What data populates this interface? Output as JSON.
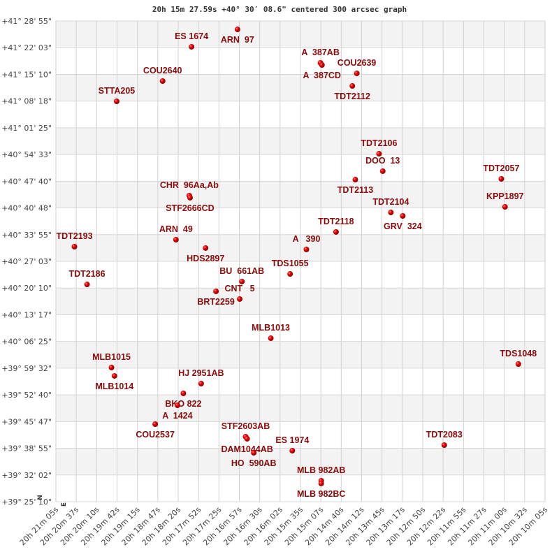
{
  "chart_data": {
    "type": "scatter",
    "title": "20h 15m 27.59s +40° 30′ 08.6\" centered 300 arcsec graph",
    "xlabel": "",
    "ylabel": "",
    "x_axis": "right ascension (decreasing to the right)",
    "xlim": [
      "20 21 05",
      "20 10 05"
    ],
    "ylim": [
      "+39 25 10",
      "+41 28 55"
    ],
    "grid": true,
    "banded_rows": true,
    "x_tick_labels": [
      "20h 21m 05s",
      "20h 20m 37s",
      "20h 20m 10s",
      "20h 19m 42s",
      "20h 19m 15s",
      "20h 18m 47s",
      "20h 18m 20s",
      "20h 17m 52s",
      "20h 17m 25s",
      "20h 16m 57s",
      "20h 16m 30s",
      "20h 16m 02s",
      "20h 15m 35s",
      "20h 15m 07s",
      "20h 14m 40s",
      "20h 14m 12s",
      "20h 13m 45s",
      "20h 13m 17s",
      "20h 12m 50s",
      "20h 12m 22s",
      "20h 11m 55s",
      "20h 11m 27s",
      "20h 11m 00s",
      "20h 10m 32s",
      "20h 10m 05s"
    ],
    "y_tick_labels": [
      "+41° 28' 55\"",
      "+41° 22' 03\"",
      "+41° 15' 10\"",
      "+41° 08' 18\"",
      "+41° 01' 25\"",
      "+40° 54' 33\"",
      "+40° 47' 40\"",
      "+40° 40' 48\"",
      "+40° 33' 55\"",
      "+40° 27' 03\"",
      "+40° 20' 10\"",
      "+40° 13' 17\"",
      "+40° 06' 25\"",
      "+39° 59' 32\"",
      "+39° 52' 40\"",
      "+39° 45' 47\"",
      "+39° 38' 55\"",
      "+39° 32' 02\"",
      "+39° 25' 10\""
    ],
    "compass": {
      "north": "N",
      "east": "E"
    },
    "point_color": "#dd0000",
    "label_color": "#8b0a0a",
    "points": [
      {
        "name": "ARN  97",
        "ra": "20 17 00",
        "dec": "+41 26 45"
      },
      {
        "name": "ES 1674",
        "ra": "20 18 02",
        "dec": "+41 22 16"
      },
      {
        "name": "A  387AB",
        "ra": "20 15 08",
        "dec": "+41 18 08"
      },
      {
        "name": "A  387CD",
        "ra": "20 15 06",
        "dec": "+41 17 35"
      },
      {
        "name": "COU2639",
        "ra": "20 14 19",
        "dec": "+41 15 26"
      },
      {
        "name": "TDT2112",
        "ra": "20 14 25",
        "dec": "+41 12 11"
      },
      {
        "name": "COU2640",
        "ra": "20 18 41",
        "dec": "+41 13 27"
      },
      {
        "name": "STTA205",
        "ra": "20 19 43",
        "dec": "+41 08 14"
      },
      {
        "name": "TDT2106",
        "ra": "20 13 49",
        "dec": "+40 54 44"
      },
      {
        "name": "DOO  13",
        "ra": "20 13 44",
        "dec": "+40 50 15"
      },
      {
        "name": "TDT2113",
        "ra": "20 14 21",
        "dec": "+40 48 05"
      },
      {
        "name": "TDT2057",
        "ra": "20 11 04",
        "dec": "+40 48 16"
      },
      {
        "name": "CHR  96Aa,Ab",
        "ra": "20 18 05",
        "dec": "+40 43 57"
      },
      {
        "name": "STF2666CD",
        "ra": "20 18 04",
        "dec": "+40 43 25"
      },
      {
        "name": "KPP1897",
        "ra": "20 10 59",
        "dec": "+40 41 04"
      },
      {
        "name": "TDT2104",
        "ra": "20 13 33",
        "dec": "+40 39 38"
      },
      {
        "name": "GRV  324",
        "ra": "20 13 17",
        "dec": "+40 38 44"
      },
      {
        "name": "TDT2118",
        "ra": "20 14 47",
        "dec": "+40 34 36"
      },
      {
        "name": "TDT2193",
        "ra": "20 20 40",
        "dec": "+40 30 49"
      },
      {
        "name": "ARN  49",
        "ra": "20 18 23",
        "dec": "+40 32 37"
      },
      {
        "name": "HDS2897",
        "ra": "20 17 43",
        "dec": "+40 30 28"
      },
      {
        "name": "A   390",
        "ra": "20 15 27",
        "dec": "+40 30 06"
      },
      {
        "name": "TDS1055",
        "ra": "20 15 49",
        "dec": "+40 23 48"
      },
      {
        "name": "BU  661AB",
        "ra": "20 16 54",
        "dec": "+40 21 50"
      },
      {
        "name": "TDT2186",
        "ra": "20 20 23",
        "dec": "+40 21 06"
      },
      {
        "name": "BRT2259",
        "ra": "20 17 29",
        "dec": "+40 19 19"
      },
      {
        "name": "CNT   5",
        "ra": "20 16 57",
        "dec": "+40 17 20"
      },
      {
        "name": "MLB1013",
        "ra": "20 16 15",
        "dec": "+40 07 15"
      },
      {
        "name": "TDS1048",
        "ra": "20 10 41",
        "dec": "+40 00 36"
      },
      {
        "name": "MLB1015",
        "ra": "20 19 50",
        "dec": "+39 59 42"
      },
      {
        "name": "MLB1014",
        "ra": "20 19 46",
        "dec": "+39 57 33"
      },
      {
        "name": "HJ 2951AB",
        "ra": "20 17 49",
        "dec": "+39 55 34"
      },
      {
        "name": "BKO 822",
        "ra": "20 18 13",
        "dec": "+39 53 03"
      },
      {
        "name": "A  1424",
        "ra": "20 18 21",
        "dec": "+39 49 59"
      },
      {
        "name": "COU2537",
        "ra": "20 18 51",
        "dec": "+39 45 08"
      },
      {
        "name": "STF2603AB",
        "ra": "20 16 49",
        "dec": "+39 41 54"
      },
      {
        "name": "DAM1044AB",
        "ra": "20 16 47",
        "dec": "+39 41 22"
      },
      {
        "name": "HO  590AB",
        "ra": "20 16 38",
        "dec": "+39 37 46"
      },
      {
        "name": "ES 1974",
        "ra": "20 15 46",
        "dec": "+39 38 18"
      },
      {
        "name": "TDT2083",
        "ra": "20 12 21",
        "dec": "+39 39 44"
      },
      {
        "name": "MLB 982AB",
        "ra": "20 15 07",
        "dec": "+39 30 34"
      },
      {
        "name": "MLB 982BC",
        "ra": "20 15 07",
        "dec": "+39 29 51"
      }
    ]
  }
}
